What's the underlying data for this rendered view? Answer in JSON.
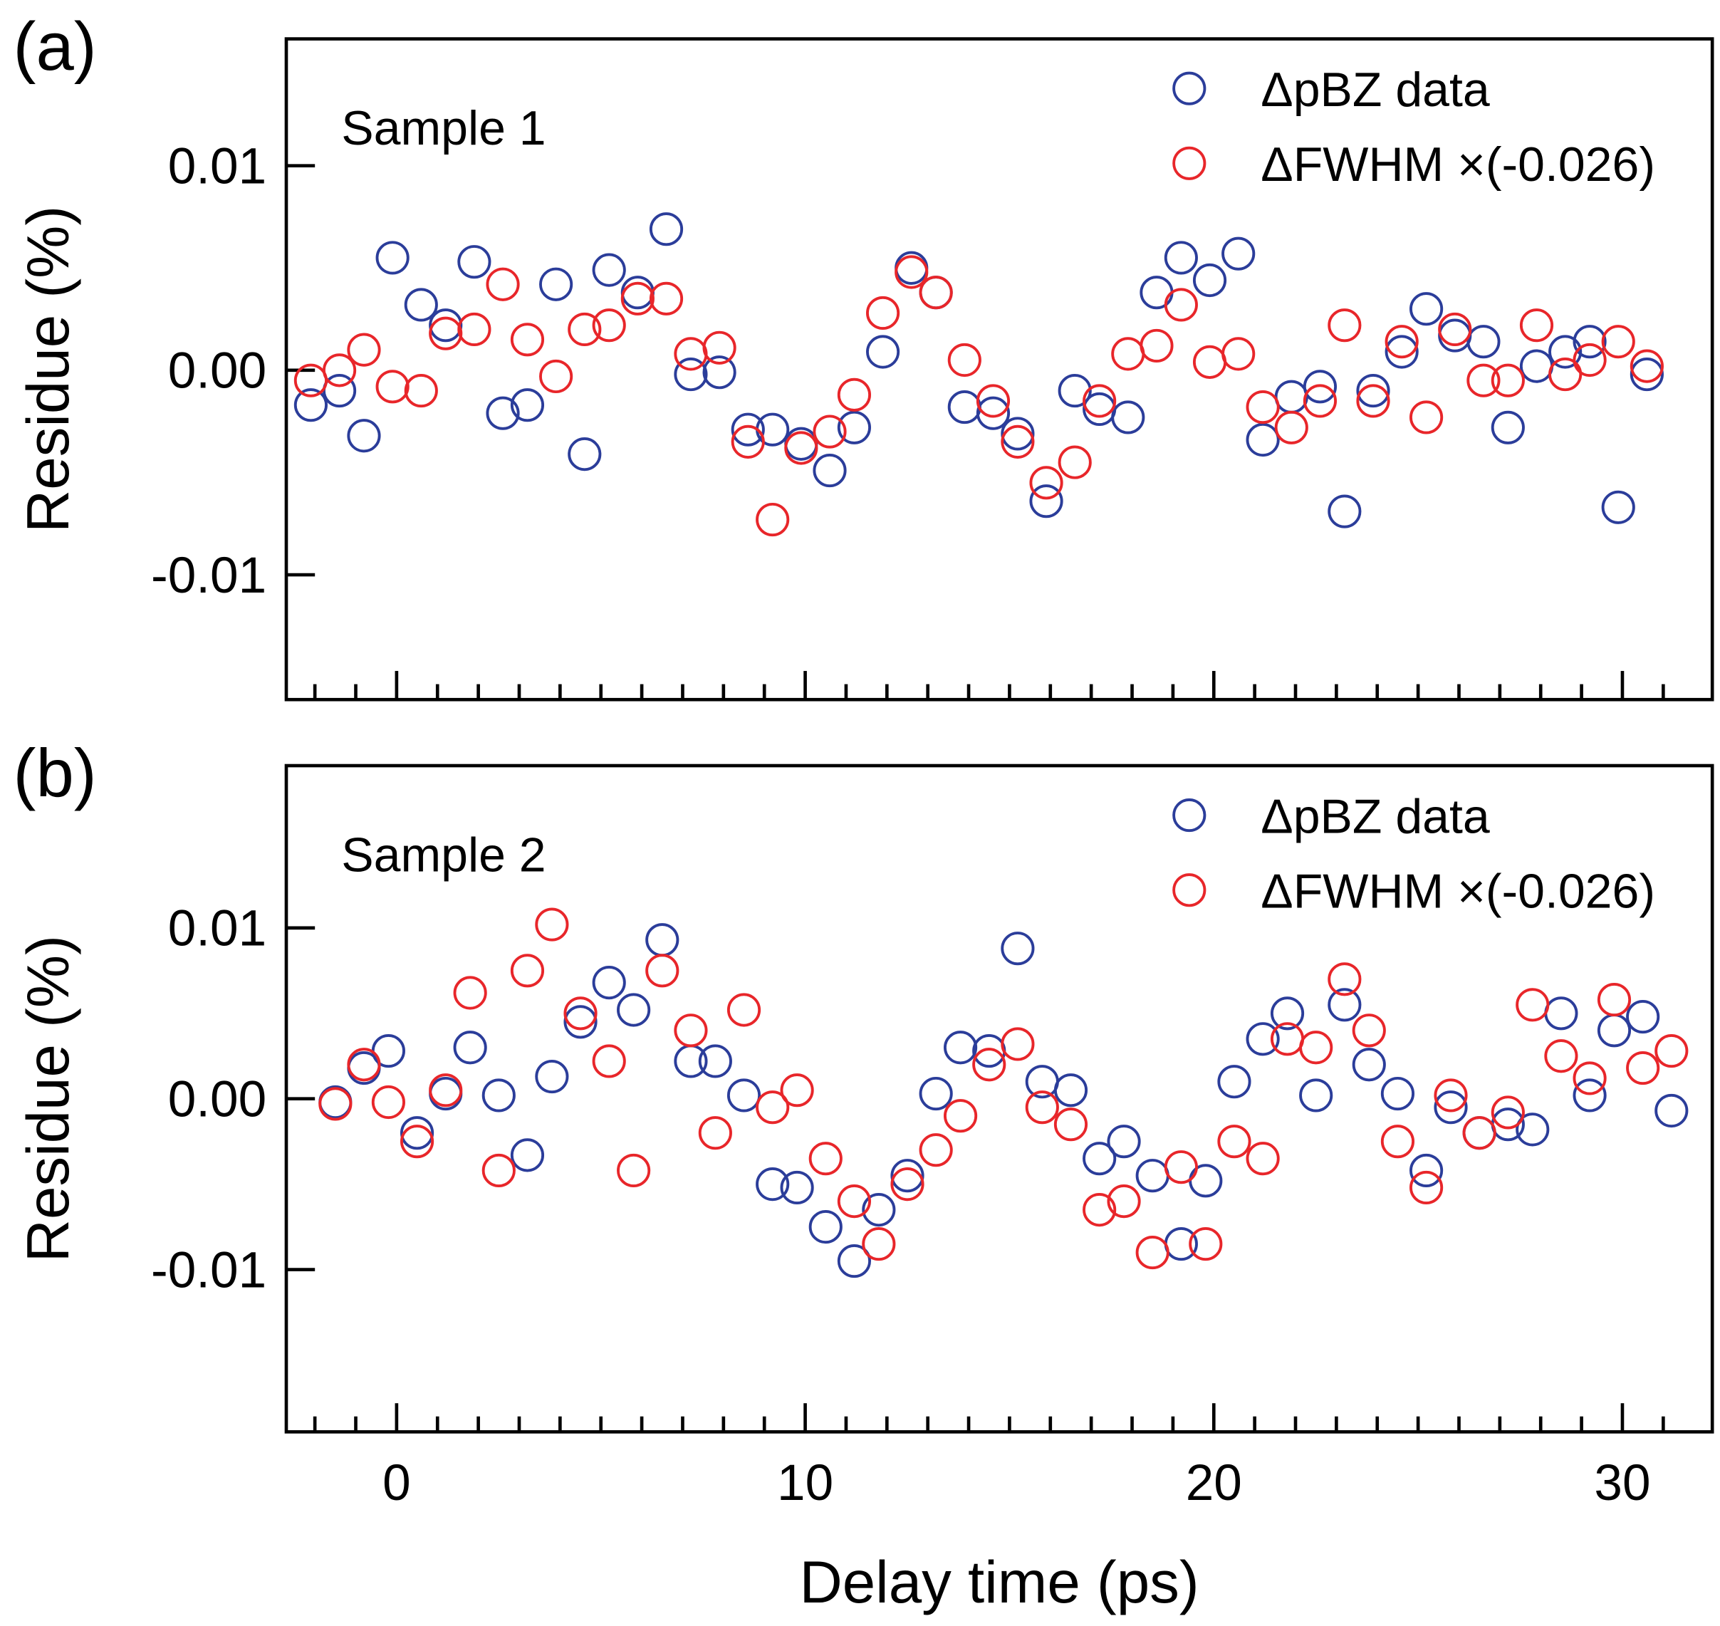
{
  "chart_data": [
    {
      "type": "scatter",
      "panel_label": "(a)",
      "annotation": "Sample 1",
      "ylabel": "Residue (%)",
      "x": [
        -2.1,
        -1.4,
        -0.8,
        -0.1,
        0.6,
        1.2,
        1.9,
        2.6,
        3.2,
        3.9,
        4.6,
        5.2,
        5.9,
        6.6,
        7.2,
        7.9,
        8.6,
        9.2,
        9.9,
        10.6,
        11.2,
        11.9,
        12.6,
        13.2,
        13.9,
        14.6,
        15.2,
        15.9,
        16.6,
        17.2,
        17.9,
        18.6,
        19.2,
        19.9,
        20.6,
        21.2,
        21.9,
        22.6,
        23.2,
        23.9,
        24.6,
        25.2,
        25.9,
        26.6,
        27.2,
        27.9,
        28.6,
        29.2,
        29.9,
        30.6
      ],
      "series": [
        {
          "name": "ΔpBZ data",
          "color": "#2b3d9a",
          "values": [
            -0.0017,
            -0.001,
            -0.0032,
            0.0055,
            0.0032,
            0.0022,
            0.0053,
            -0.0021,
            -0.0017,
            0.0042,
            -0.0041,
            0.0049,
            0.0038,
            0.0069,
            -0.0002,
            -0.0001,
            -0.0029,
            -0.0029,
            -0.0036,
            -0.0049,
            -0.0028,
            0.0009,
            0.005,
            0.0038,
            -0.0018,
            -0.0021,
            -0.0031,
            -0.0064,
            -0.001,
            -0.0019,
            -0.0023,
            0.0038,
            0.0055,
            0.0044,
            0.0057,
            -0.0034,
            -0.0013,
            -0.0008,
            -0.0069,
            -0.001,
            0.0009,
            0.003,
            0.0017,
            0.0014,
            -0.0028,
            0.0002,
            0.0009,
            0.0014,
            -0.0067,
            -0.0002
          ]
        },
        {
          "name": "ΔFWHM ×(-0.026)",
          "color": "#e8262a",
          "values": [
            -0.0005,
            0.0,
            0.001,
            -0.0008,
            -0.001,
            0.0018,
            0.002,
            0.0042,
            0.0015,
            -0.0003,
            0.002,
            0.0022,
            0.0035,
            0.0035,
            0.0008,
            0.0011,
            -0.0035,
            -0.0073,
            -0.0038,
            -0.003,
            -0.0012,
            0.0028,
            0.0048,
            0.0038,
            0.0005,
            -0.0015,
            -0.0035,
            -0.0055,
            -0.0045,
            -0.0015,
            0.0008,
            0.0012,
            0.0032,
            0.0004,
            0.0008,
            -0.0018,
            -0.0028,
            -0.0015,
            0.0022,
            -0.0015,
            0.0014,
            -0.0023,
            0.002,
            -0.0005,
            -0.0005,
            0.0022,
            -0.0002,
            0.0005,
            0.0014,
            0.0002
          ]
        }
      ],
      "xlim": [
        -2.7,
        32.2
      ],
      "ylim": [
        -0.0161,
        0.0162
      ],
      "xticks": [
        0,
        10,
        20,
        30
      ],
      "show_xticklabels": false,
      "xminorticks": [
        -2,
        -1,
        1,
        2,
        3,
        4,
        5,
        6,
        7,
        8,
        9,
        11,
        12,
        13,
        14,
        15,
        16,
        17,
        18,
        19,
        21,
        22,
        23,
        24,
        25,
        26,
        27,
        28,
        29,
        31
      ],
      "yticks": [
        -0.01,
        {
          "value": 0,
          "label": "0.00"
        },
        0.01
      ],
      "legend": "upper right"
    },
    {
      "type": "scatter",
      "panel_label": "(b)",
      "annotation": "Sample 2",
      "ylabel": "Residue (%)",
      "xlabel": "Delay time (ps)",
      "x": [
        -1.5,
        -0.8,
        -0.2,
        0.5,
        1.2,
        1.8,
        2.5,
        3.2,
        3.8,
        4.5,
        5.2,
        5.8,
        6.5,
        7.2,
        7.8,
        8.5,
        9.2,
        9.8,
        10.5,
        11.2,
        11.8,
        12.5,
        13.2,
        13.8,
        14.5,
        15.2,
        15.8,
        16.5,
        17.2,
        17.8,
        18.5,
        19.2,
        19.8,
        20.5,
        21.2,
        21.8,
        22.5,
        23.2,
        23.8,
        24.5,
        25.2,
        25.8,
        26.5,
        27.2,
        27.8,
        28.5,
        29.2,
        29.8,
        30.5,
        31.2
      ],
      "series": [
        {
          "name": "ΔpBZ data",
          "color": "#2b3d9a",
          "values": [
            -0.0002,
            0.0018,
            0.0028,
            -0.002,
            0.0003,
            0.003,
            0.0002,
            -0.0033,
            0.0013,
            0.0045,
            0.0068,
            0.0052,
            0.0093,
            0.0022,
            0.0022,
            0.0002,
            -0.005,
            -0.0052,
            -0.0075,
            -0.0095,
            -0.0065,
            -0.0045,
            0.0003,
            0.003,
            0.0028,
            0.0088,
            0.001,
            0.0005,
            -0.0035,
            -0.0025,
            -0.0045,
            -0.0085,
            -0.0048,
            0.001,
            0.0035,
            0.005,
            0.0002,
            0.0055,
            0.002,
            0.0003,
            -0.0042,
            -0.0005,
            -0.002,
            -0.0015,
            -0.0018,
            0.005,
            0.0002,
            0.004,
            0.0048,
            -0.0007
          ]
        },
        {
          "name": "ΔFWHM ×(-0.026)",
          "color": "#e8262a",
          "values": [
            -0.0003,
            0.002,
            -0.0002,
            -0.0025,
            0.0005,
            0.0062,
            -0.0042,
            0.0075,
            0.0102,
            0.005,
            0.0022,
            -0.0042,
            0.0075,
            0.004,
            -0.002,
            0.0052,
            -0.0005,
            0.0005,
            -0.0035,
            -0.006,
            -0.0085,
            -0.005,
            -0.003,
            -0.001,
            0.002,
            0.0032,
            -0.0005,
            -0.0015,
            -0.0065,
            -0.006,
            -0.009,
            -0.004,
            -0.0085,
            -0.0025,
            -0.0035,
            0.0035,
            0.003,
            0.007,
            0.004,
            -0.0025,
            -0.0052,
            0.0002,
            -0.002,
            -0.0008,
            0.0055,
            0.0025,
            0.0012,
            0.0058,
            0.0018,
            0.0028
          ]
        }
      ],
      "xlim": [
        -2.7,
        32.2
      ],
      "ylim": [
        -0.0195,
        0.0195
      ],
      "xticks": [
        0,
        10,
        20,
        30
      ],
      "show_xticklabels": true,
      "xminorticks": [
        -2,
        -1,
        1,
        2,
        3,
        4,
        5,
        6,
        7,
        8,
        9,
        11,
        12,
        13,
        14,
        15,
        16,
        17,
        18,
        19,
        21,
        22,
        23,
        24,
        25,
        26,
        27,
        28,
        29,
        31
      ],
      "yticks": [
        -0.01,
        {
          "value": 0,
          "label": "0.00"
        },
        0.01
      ],
      "legend": "upper right"
    }
  ]
}
